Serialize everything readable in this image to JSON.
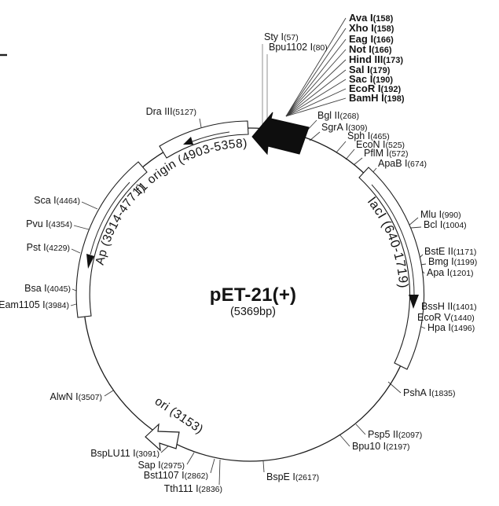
{
  "plasmid": {
    "title": "pET-21(+)",
    "size_label": "(5369bp)",
    "features": {
      "f1": "f1 origin (4903-5358)",
      "ap": "Ap (3914-4771)",
      "laci": "lacI (640-1719)",
      "ori": "ori (3153)"
    },
    "sites": [
      {
        "name": "Sty I",
        "loc": "(57)",
        "bold": false
      },
      {
        "name": "Bpu1102 I",
        "loc": "(80)",
        "bold": false
      },
      {
        "name": "Ava I",
        "loc": "(158)",
        "bold": true
      },
      {
        "name": "Xho I",
        "loc": "(158)",
        "bold": true
      },
      {
        "name": "Eag I",
        "loc": "(166)",
        "bold": true
      },
      {
        "name": "Not I",
        "loc": "(166)",
        "bold": true
      },
      {
        "name": "Hind III",
        "loc": "(173)",
        "bold": true
      },
      {
        "name": "Sal I",
        "loc": "(179)",
        "bold": true
      },
      {
        "name": "Sac I",
        "loc": "(190)",
        "bold": true
      },
      {
        "name": "EcoR I",
        "loc": "(192)",
        "bold": true
      },
      {
        "name": "BamH I",
        "loc": "(198)",
        "bold": true
      },
      {
        "name": "Bgl II",
        "loc": "(268)",
        "bold": false
      },
      {
        "name": "SgrA I",
        "loc": "(309)",
        "bold": false
      },
      {
        "name": "Sph I",
        "loc": "(465)",
        "bold": false
      },
      {
        "name": "EcoN I",
        "loc": "(525)",
        "bold": false
      },
      {
        "name": "PflM I",
        "loc": "(572)",
        "bold": false
      },
      {
        "name": "ApaB I",
        "loc": "(674)",
        "bold": false
      },
      {
        "name": "Mlu I",
        "loc": "(990)",
        "bold": false
      },
      {
        "name": "Bcl I",
        "loc": "(1004)",
        "bold": false
      },
      {
        "name": "BstE II",
        "loc": "(1171)",
        "bold": false
      },
      {
        "name": "Bmg I",
        "loc": "(1199)",
        "bold": false
      },
      {
        "name": "Apa I",
        "loc": "(1201)",
        "bold": false
      },
      {
        "name": "BssH II",
        "loc": "(1401)",
        "bold": false
      },
      {
        "name": "EcoR V",
        "loc": "(1440)",
        "bold": false
      },
      {
        "name": "Hpa I",
        "loc": "(1496)",
        "bold": false
      },
      {
        "name": "PshA I",
        "loc": "(1835)",
        "bold": false
      },
      {
        "name": "Psp5 II",
        "loc": "(2097)",
        "bold": false
      },
      {
        "name": "Bpu10 I",
        "loc": "(2197)",
        "bold": false
      },
      {
        "name": "BspE I",
        "loc": "(2617)",
        "bold": false
      },
      {
        "name": "Tth111 I",
        "loc": "(2836)",
        "bold": false
      },
      {
        "name": "Bst1107 I",
        "loc": "(2862)",
        "bold": false
      },
      {
        "name": "Sap I",
        "loc": "(2975)",
        "bold": false
      },
      {
        "name": "BspLU11 I",
        "loc": "(3091)",
        "bold": false
      },
      {
        "name": "AlwN I",
        "loc": "(3507)",
        "bold": false
      },
      {
        "name": "Eam1105 I",
        "loc": "(3984)",
        "bold": false
      },
      {
        "name": "Bsa I",
        "loc": "(4045)",
        "bold": false
      },
      {
        "name": "Pst I",
        "loc": "(4229)",
        "bold": false
      },
      {
        "name": "Pvu I",
        "loc": "(4354)",
        "bold": false
      },
      {
        "name": "Sca I",
        "loc": "(4464)",
        "bold": false
      },
      {
        "name": "Dra III",
        "loc": "(5127)",
        "bold": false
      }
    ]
  }
}
